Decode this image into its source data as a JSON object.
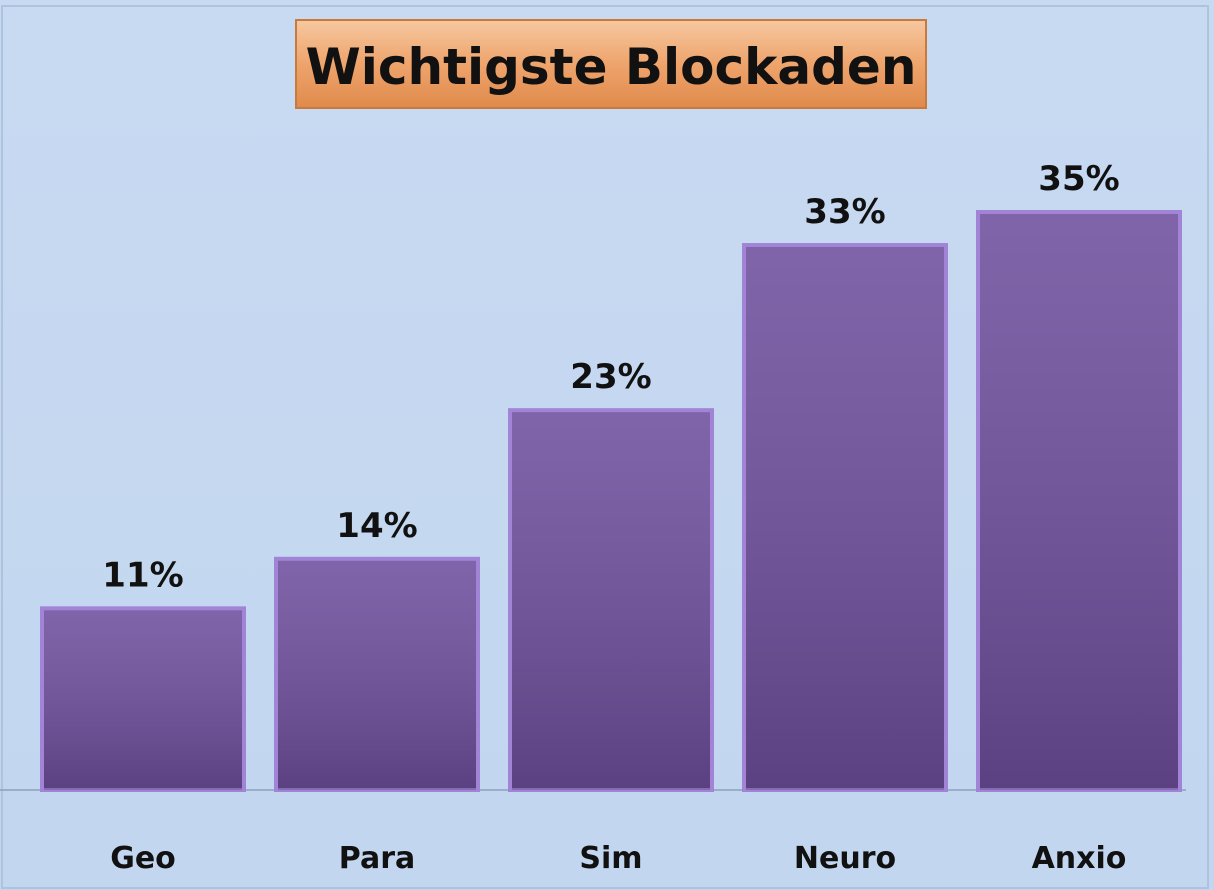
{
  "chart_data": {
    "type": "bar",
    "title": "Wichtigste Blockaden",
    "categories": [
      "Geo",
      "Para",
      "Sim",
      "Neuro",
      "Anxio"
    ],
    "values": [
      11,
      14,
      23,
      33,
      35
    ],
    "value_labels": [
      "11%",
      "14%",
      "23%",
      "33%",
      "35%"
    ],
    "color": "#6f4f9e"
  }
}
